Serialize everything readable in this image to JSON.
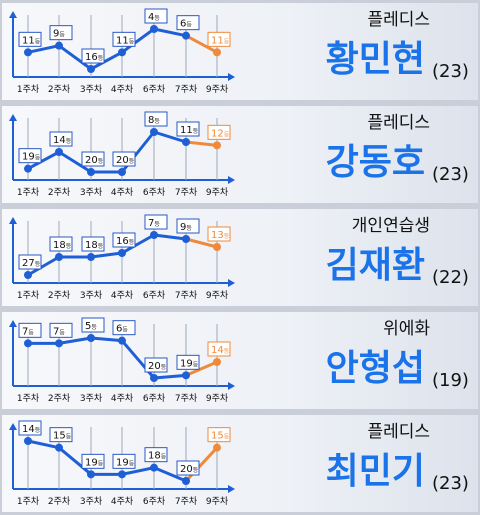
{
  "colors": {
    "line": "#1f5fd6",
    "point": "#1f5fd6",
    "future": "#f08a3a",
    "name": "#1a73e8",
    "label_border": "#2a58c8",
    "text": "#111111"
  },
  "chart_data": [
    {
      "type": "line",
      "categories": [
        "1주차",
        "2주차",
        "3주차",
        "4주차",
        "6주차",
        "7주차",
        "9주차"
      ],
      "series": [
        {
          "values": [
            11,
            9,
            16,
            11,
            4,
            6,
            11
          ]
        }
      ],
      "rank_unit": "등",
      "company": "플레디스",
      "name": "황민현",
      "age": "(23)"
    },
    {
      "type": "line",
      "categories": [
        "1주차",
        "2주차",
        "3주차",
        "4주차",
        "6주차",
        "7주차",
        "9주차"
      ],
      "series": [
        {
          "values": [
            19,
            14,
            20,
            20,
            8,
            11,
            12
          ]
        }
      ],
      "rank_unit": "등",
      "company": "플레디스",
      "name": "강동호",
      "age": "(23)"
    },
    {
      "type": "line",
      "categories": [
        "1주차",
        "2주차",
        "3주차",
        "4주차",
        "6주차",
        "7주차",
        "9주차"
      ],
      "series": [
        {
          "values": [
            27,
            18,
            18,
            16,
            7,
            9,
            13
          ]
        }
      ],
      "rank_unit": "등",
      "company": "개인연습생",
      "name": "김재환",
      "age": "(22)"
    },
    {
      "type": "line",
      "categories": [
        "1주차",
        "2주차",
        "3주차",
        "4주차",
        "6주차",
        "7주차",
        "9주차"
      ],
      "series": [
        {
          "values": [
            7,
            7,
            5,
            6,
            20,
            19,
            14
          ]
        }
      ],
      "rank_unit": "등",
      "company": "위에화",
      "name": "안형섭",
      "age": "(19)"
    },
    {
      "type": "line",
      "categories": [
        "1주차",
        "2주차",
        "3주차",
        "4주차",
        "6주차",
        "7주차",
        "9주차"
      ],
      "series": [
        {
          "values": [
            14,
            15,
            19,
            19,
            18,
            20,
            15
          ]
        }
      ],
      "rank_unit": "등",
      "company": "플레디스",
      "name": "최민기",
      "age": "(23)"
    }
  ]
}
